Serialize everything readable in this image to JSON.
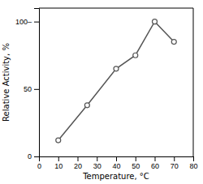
{
  "chart_data": {
    "type": "line",
    "x": [
      10,
      25,
      40,
      50,
      60,
      70
    ],
    "values": [
      12,
      38,
      65,
      75,
      100,
      85
    ],
    "xlabel": "Temperature,  °C",
    "ylabel": "Relative Activity, %",
    "xlim": [
      0,
      80
    ],
    "ylim": [
      0,
      110
    ],
    "xticks": [
      0,
      10,
      20,
      30,
      40,
      50,
      60,
      70,
      80
    ],
    "yticks": [
      0,
      50,
      {
        "value": 100,
        "label": "100–"
      }
    ],
    "color": "#555555",
    "marker": "circle",
    "grid": false
  }
}
